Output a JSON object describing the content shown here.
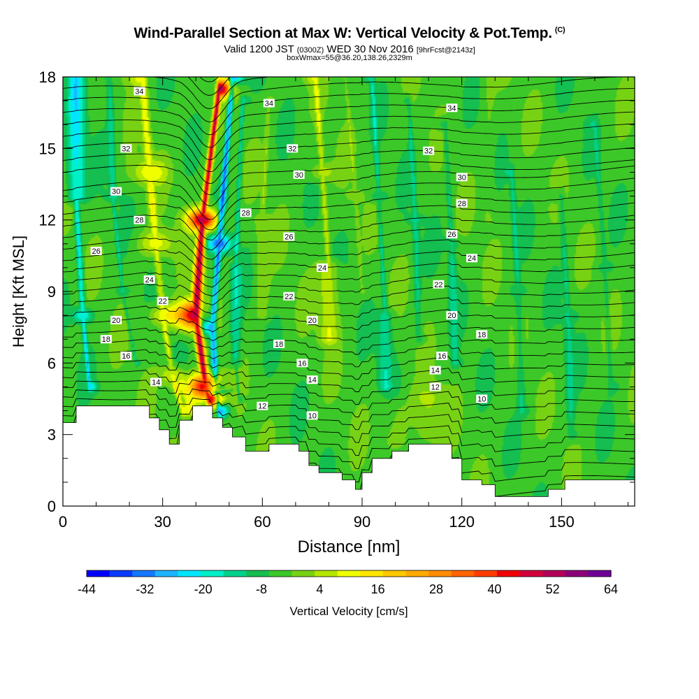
{
  "header": {
    "title": "Wind-Parallel Section at Max W: Vertical Velocity & Pot.Temp.",
    "copyright": "(C)",
    "valid_main": "Valid 1200 JST",
    "valid_zulu": "(0300Z)",
    "valid_date": "WED 30 Nov 2016",
    "forecast_info": "[9hrFcst@2143z]",
    "box_info": "boxWmax=55@36.20,138.26,2329m"
  },
  "chart_data": {
    "type": "heatmap",
    "xlabel": "Distance [nm]",
    "ylabel": "Height [Kft MSL]",
    "xlim": [
      0,
      172
    ],
    "ylim": [
      0,
      18
    ],
    "xticks": [
      0,
      30,
      60,
      90,
      120,
      150
    ],
    "yticks": [
      0,
      3,
      6,
      9,
      12,
      15,
      18
    ],
    "colorbar": {
      "label": "Vertical Velocity [cm/s]",
      "min": -44,
      "max": 64,
      "tick_labels": [
        "-44",
        "-32",
        "-20",
        "-8",
        "4",
        "16",
        "28",
        "40",
        "52",
        "64"
      ],
      "colors": [
        "#0000ff",
        "#0a3cff",
        "#1478ff",
        "#1eb4ff",
        "#00e6ff",
        "#00f0c8",
        "#00d28c",
        "#14be50",
        "#3cc828",
        "#78d214",
        "#b4e600",
        "#f0ff00",
        "#ffe600",
        "#ffc800",
        "#ffaa00",
        "#ff8c00",
        "#ff6400",
        "#ff3c00",
        "#f00000",
        "#d2003c",
        "#b4005a",
        "#8c0078",
        "#6e0096"
      ]
    },
    "terrain": [
      [
        0,
        3.5
      ],
      [
        4,
        3.5
      ],
      [
        4,
        4.2
      ],
      [
        26,
        4.2
      ],
      [
        26,
        3.7
      ],
      [
        29,
        3.7
      ],
      [
        29,
        3.2
      ],
      [
        32,
        3.2
      ],
      [
        32,
        2.6
      ],
      [
        35,
        2.6
      ],
      [
        35,
        3.6
      ],
      [
        39,
        3.6
      ],
      [
        39,
        4.2
      ],
      [
        45,
        4.2
      ],
      [
        45,
        3.7
      ],
      [
        48,
        3.7
      ],
      [
        48,
        3.3
      ],
      [
        51,
        3.3
      ],
      [
        51,
        2.9
      ],
      [
        55,
        2.9
      ],
      [
        55,
        2.3
      ],
      [
        62,
        2.3
      ],
      [
        62,
        2.6
      ],
      [
        71,
        2.6
      ],
      [
        71,
        2.3
      ],
      [
        74,
        2.3
      ],
      [
        74,
        1.7
      ],
      [
        77,
        1.7
      ],
      [
        77,
        1.4
      ],
      [
        84,
        1.4
      ],
      [
        84,
        1.1
      ],
      [
        88,
        1.1
      ],
      [
        88,
        0.7
      ],
      [
        90,
        0.7
      ],
      [
        90,
        1.4
      ],
      [
        93,
        1.4
      ],
      [
        93,
        2.0
      ],
      [
        99,
        2.0
      ],
      [
        99,
        2.3
      ],
      [
        104,
        2.3
      ],
      [
        104,
        2.6
      ],
      [
        117,
        2.6
      ],
      [
        117,
        2.0
      ],
      [
        120,
        2.0
      ],
      [
        120,
        1.1
      ],
      [
        126,
        1.1
      ],
      [
        126,
        0.9
      ],
      [
        130,
        0.9
      ],
      [
        130,
        0.4
      ],
      [
        146,
        0.4
      ],
      [
        146,
        0.7
      ],
      [
        151,
        0.7
      ],
      [
        151,
        1.1
      ],
      [
        172,
        1.1
      ]
    ],
    "updraft_lines": [
      {
        "sign": "pos",
        "points": [
          [
            47,
            17.5
          ],
          [
            42,
            12
          ],
          [
            40,
            8
          ],
          [
            43,
            5
          ],
          [
            44,
            4.5
          ]
        ],
        "widths": [
          2.5,
          3,
          4,
          3.5,
          2.5
        ],
        "peak": 55
      },
      {
        "sign": "neg",
        "points": [
          [
            51,
            18
          ],
          [
            47,
            11
          ],
          [
            45,
            7.5
          ],
          [
            46,
            5
          ],
          [
            47,
            4
          ]
        ],
        "widths": [
          2.2,
          2.5,
          2.5,
          2.2,
          2
        ],
        "peak": -28
      },
      {
        "sign": "neg",
        "points": [
          [
            54,
            17
          ],
          [
            52,
            10
          ],
          [
            52,
            6
          ],
          [
            53,
            4.5
          ]
        ],
        "widths": [
          1.2,
          1.2,
          1.1,
          1
        ],
        "peak": -10
      },
      {
        "sign": "pos",
        "points": [
          [
            24,
            18
          ],
          [
            26,
            14
          ],
          [
            28,
            11
          ],
          [
            30,
            8
          ],
          [
            33,
            5.5
          ],
          [
            36,
            4
          ]
        ],
        "widths": [
          3,
          3.5,
          3.5,
          3,
          2.5,
          2
        ],
        "peak": 14
      },
      {
        "sign": "neg",
        "points": [
          [
            4,
            18
          ],
          [
            4,
            13
          ],
          [
            6,
            8
          ],
          [
            8,
            5
          ]
        ],
        "widths": [
          1.6,
          2,
          2,
          1.5
        ],
        "peak": -18
      },
      {
        "sign": "neg",
        "points": [
          [
            14,
            18
          ],
          [
            15,
            13
          ],
          [
            18,
            9
          ],
          [
            22,
            6
          ]
        ],
        "widths": [
          1.5,
          1.5,
          1.5,
          1.2
        ],
        "peak": -9
      },
      {
        "sign": "pos",
        "points": [
          [
            76,
            18
          ],
          [
            78,
            14
          ],
          [
            80,
            10
          ],
          [
            80,
            7
          ]
        ],
        "widths": [
          2.2,
          2.5,
          2.2,
          1.8
        ],
        "peak": 11
      },
      {
        "sign": "pos",
        "points": [
          [
            62,
            17
          ],
          [
            60,
            12
          ],
          [
            60,
            8
          ]
        ],
        "widths": [
          1.6,
          1.6,
          1.4
        ],
        "peak": 6
      },
      {
        "sign": "neg",
        "points": [
          [
            93,
            18
          ],
          [
            95,
            13
          ],
          [
            97,
            8
          ],
          [
            97,
            5
          ]
        ],
        "widths": [
          1.6,
          1.8,
          1.6,
          1.4
        ],
        "peak": -10
      },
      {
        "sign": "pos",
        "points": [
          [
            85,
            18
          ],
          [
            88,
            13
          ],
          [
            90,
            9
          ]
        ],
        "widths": [
          1.5,
          1.6,
          1.3
        ],
        "peak": 5
      },
      {
        "sign": "neg",
        "points": [
          [
            104,
            17
          ],
          [
            106,
            12
          ],
          [
            107,
            7
          ]
        ],
        "widths": [
          1.5,
          1.6,
          1.4
        ],
        "peak": -8
      },
      {
        "sign": "neg",
        "points": [
          [
            115,
            16
          ],
          [
            117,
            11
          ],
          [
            118,
            6
          ]
        ],
        "widths": [
          1.8,
          1.8,
          1.6
        ],
        "peak": -8
      },
      {
        "sign": "neg",
        "points": [
          [
            135,
            14
          ],
          [
            137,
            9
          ],
          [
            138,
            4
          ]
        ],
        "widths": [
          2,
          2,
          1.8
        ],
        "peak": -7
      },
      {
        "sign": "neg",
        "points": [
          [
            150,
            13
          ],
          [
            152,
            8
          ],
          [
            153,
            3
          ]
        ],
        "widths": [
          2,
          2,
          1.8
        ],
        "peak": -7
      },
      {
        "sign": "neg",
        "points": [
          [
            160,
            16
          ],
          [
            163,
            10
          ],
          [
            165,
            5
          ]
        ],
        "widths": [
          1.8,
          1.8,
          1.6
        ],
        "peak": -6
      },
      {
        "sign": "pos",
        "points": [
          [
            110,
            4.5
          ],
          [
            110,
            3.0
          ]
        ],
        "widths": [
          4,
          3
        ],
        "peak": 7
      },
      {
        "sign": "pos",
        "points": [
          [
            100,
            4
          ],
          [
            100,
            2.8
          ]
        ],
        "widths": [
          3,
          3
        ],
        "peak": 5
      },
      {
        "sign": "pos",
        "points": [
          [
            36,
            5
          ],
          [
            38,
            4.2
          ]
        ],
        "widths": [
          2.5,
          2.5
        ],
        "peak": 9
      },
      {
        "sign": "pos",
        "points": [
          [
            128,
            18
          ],
          [
            128,
            12
          ]
        ],
        "widths": [
          1.4,
          1.4
        ],
        "peak": 3
      }
    ],
    "theta_contours": [
      {
        "level": 10,
        "label_pos": [
          [
            75,
            3.8
          ],
          [
            126,
            4.5
          ]
        ]
      },
      {
        "level": 12,
        "label_pos": [
          [
            60,
            4.2
          ],
          [
            112,
            5.0
          ]
        ]
      },
      {
        "level": 14,
        "label_pos": [
          [
            28,
            5.2
          ],
          [
            75,
            5.3
          ],
          [
            112,
            5.7
          ]
        ]
      },
      {
        "level": 16,
        "label_pos": [
          [
            19,
            6.3
          ],
          [
            72,
            6.0
          ],
          [
            114,
            6.3
          ]
        ]
      },
      {
        "level": 18,
        "label_pos": [
          [
            13,
            7.0
          ],
          [
            65,
            6.8
          ],
          [
            126,
            7.2
          ]
        ]
      },
      {
        "level": 20,
        "label_pos": [
          [
            16,
            7.8
          ],
          [
            75,
            7.8
          ],
          [
            117,
            8.0
          ]
        ]
      },
      {
        "level": 22,
        "label_pos": [
          [
            30,
            8.6
          ],
          [
            68,
            8.8
          ],
          [
            113,
            9.3
          ]
        ]
      },
      {
        "level": 24,
        "label_pos": [
          [
            26,
            9.5
          ],
          [
            78,
            10.0
          ],
          [
            123,
            10.4
          ]
        ]
      },
      {
        "level": 26,
        "label_pos": [
          [
            10,
            10.7
          ],
          [
            68,
            11.3
          ],
          [
            117,
            11.4
          ]
        ]
      },
      {
        "level": 28,
        "label_pos": [
          [
            23,
            12.0
          ],
          [
            55,
            12.3
          ],
          [
            120,
            12.7
          ]
        ]
      },
      {
        "level": 30,
        "label_pos": [
          [
            16,
            13.2
          ],
          [
            71,
            13.9
          ],
          [
            120,
            13.8
          ]
        ]
      },
      {
        "level": 32,
        "label_pos": [
          [
            19,
            15.0
          ],
          [
            69,
            15.0
          ],
          [
            110,
            14.9
          ]
        ]
      },
      {
        "level": 34,
        "label_pos": [
          [
            23,
            17.4
          ],
          [
            62,
            16.9
          ],
          [
            117,
            16.7
          ]
        ]
      }
    ],
    "grid": false
  }
}
